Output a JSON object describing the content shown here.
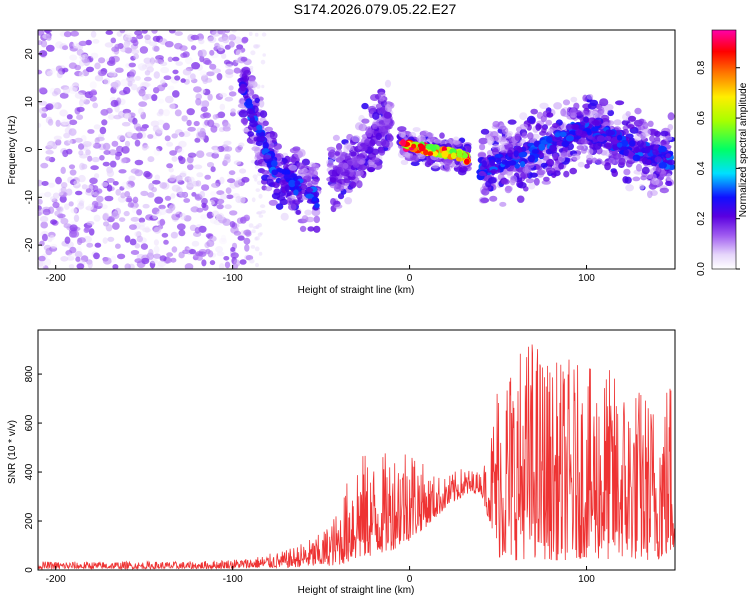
{
  "figure": {
    "title": "S174.2026.079.05.22.E27"
  },
  "chart_data": [
    {
      "type": "heatmap",
      "xlabel": "Height of straight line (km)",
      "ylabel": "Frequency (Hz)",
      "xlim": [
        -210,
        150
      ],
      "ylim": [
        -25,
        25
      ],
      "xticks": [
        -200,
        -100,
        0,
        100
      ],
      "yticks": [
        -20,
        -10,
        0,
        10,
        20
      ],
      "grid": false,
      "colorbar": {
        "label": "Normalized spectral amplitude",
        "range": [
          0,
          0.95
        ],
        "ticks": [
          0.0,
          0.2,
          0.4,
          0.6,
          0.8
        ],
        "colormap": "white-violet-blue-cyan-green-yellow-orange-red-magenta"
      },
      "features": [
        {
          "segment": "noise",
          "x_range": [
            -210,
            -90
          ],
          "freq_center": 0,
          "freq_spread": 25,
          "amplitude": 0.1
        },
        {
          "segment": "descending-trace",
          "points": [
            [
              -95,
              13
            ],
            [
              -85,
              3
            ],
            [
              -75,
              -5
            ],
            [
              -62,
              -8
            ],
            [
              -52,
              -10
            ]
          ],
          "amplitude": 0.3
        },
        {
          "segment": "rising-trace",
          "points": [
            [
              -45,
              -5
            ],
            [
              -30,
              -2
            ],
            [
              -20,
              3
            ],
            [
              -10,
              7
            ]
          ],
          "amplitude": 0.2
        },
        {
          "segment": "strong-trace",
          "points": [
            [
              -5,
              1
            ],
            [
              10,
              0
            ],
            [
              25,
              -1
            ],
            [
              33,
              -2
            ]
          ],
          "amplitude": 0.85
        },
        {
          "segment": "mid-trace",
          "points": [
            [
              40,
              -4
            ],
            [
              60,
              -2
            ],
            [
              80,
              1
            ],
            [
              100,
              5
            ],
            [
              115,
              2
            ],
            [
              135,
              -1
            ],
            [
              148,
              -2
            ]
          ],
          "amplitude": 0.3
        }
      ]
    },
    {
      "type": "line",
      "xlabel": "Height of straight line (km)",
      "ylabel": "SNR (10 * v/v)",
      "xlim": [
        -210,
        150
      ],
      "ylim": [
        0,
        980
      ],
      "xticks": [
        -200,
        -100,
        0,
        100
      ],
      "yticks": [
        0,
        200,
        400,
        600,
        800
      ],
      "grid": false,
      "color": "#ee3333",
      "envelope": {
        "x": [
          -210,
          -120,
          -90,
          -70,
          -50,
          -40,
          -30,
          -20,
          -10,
          0,
          10,
          20,
          30,
          40,
          45,
          50,
          60,
          70,
          80,
          90,
          100,
          110,
          120,
          130,
          140,
          150
        ],
        "min": [
          5,
          5,
          8,
          10,
          15,
          20,
          40,
          60,
          80,
          120,
          180,
          250,
          300,
          320,
          200,
          50,
          40,
          50,
          40,
          40,
          50,
          40,
          50,
          40,
          40,
          60
        ],
        "max": [
          35,
          35,
          50,
          80,
          150,
          250,
          500,
          450,
          500,
          550,
          400,
          380,
          420,
          400,
          500,
          850,
          900,
          980,
          850,
          870,
          820,
          850,
          780,
          760,
          700,
          880
        ]
      }
    }
  ]
}
